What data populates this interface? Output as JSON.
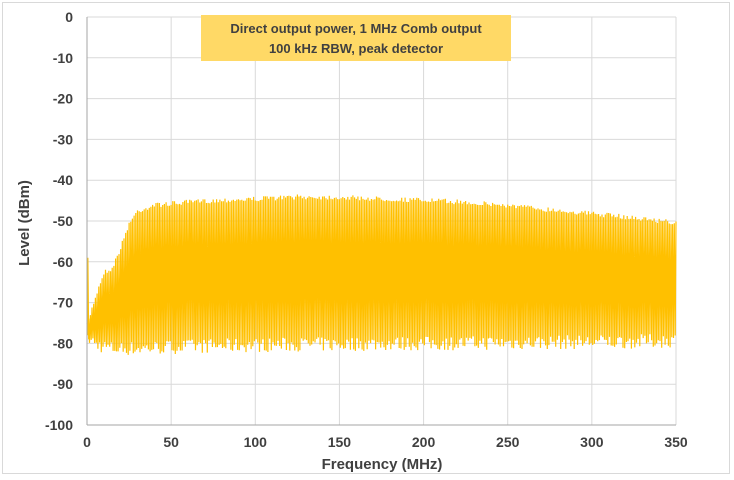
{
  "chart_data": {
    "type": "line",
    "title": "",
    "xlabel": "Frequency (MHz)",
    "ylabel": "Level (dBm)",
    "xlim": [
      0,
      350
    ],
    "ylim": [
      -100,
      0
    ],
    "x_ticks": [
      0,
      50,
      100,
      150,
      200,
      250,
      300,
      350
    ],
    "y_ticks": [
      0,
      -10,
      -20,
      -30,
      -40,
      -50,
      -60,
      -70,
      -80,
      -90,
      -100
    ],
    "grid": true,
    "line_color": "#FFC000",
    "annotation": {
      "lines": [
        "Direct output power, 1 MHz Comb output",
        "100 kHz RBW, peak detector"
      ],
      "background": "#FFD966"
    },
    "series": [
      {
        "x": [
          0,
          5,
          10,
          15,
          20,
          25,
          30,
          40,
          60,
          80,
          100,
          125,
          150,
          175,
          200,
          225,
          250,
          275,
          300,
          325,
          350
        ],
        "upper_envelope": [
          -75,
          -68,
          -62,
          -61,
          -56,
          -50,
          -47,
          -45.5,
          -44.8,
          -44.3,
          -44,
          -43.5,
          -43.6,
          -44,
          -44.3,
          -44.8,
          -45.6,
          -46.6,
          -47.6,
          -48.6,
          -49.8
        ],
        "lower_envelope": [
          -80,
          -82,
          -82.5,
          -83,
          -83,
          -83,
          -83,
          -82.8,
          -82.5,
          -82.3,
          -82.2,
          -82,
          -82,
          -81.8,
          -81.8,
          -81.7,
          -81.6,
          -81.5,
          -81.4,
          -81.3,
          -81
        ]
      }
    ]
  }
}
